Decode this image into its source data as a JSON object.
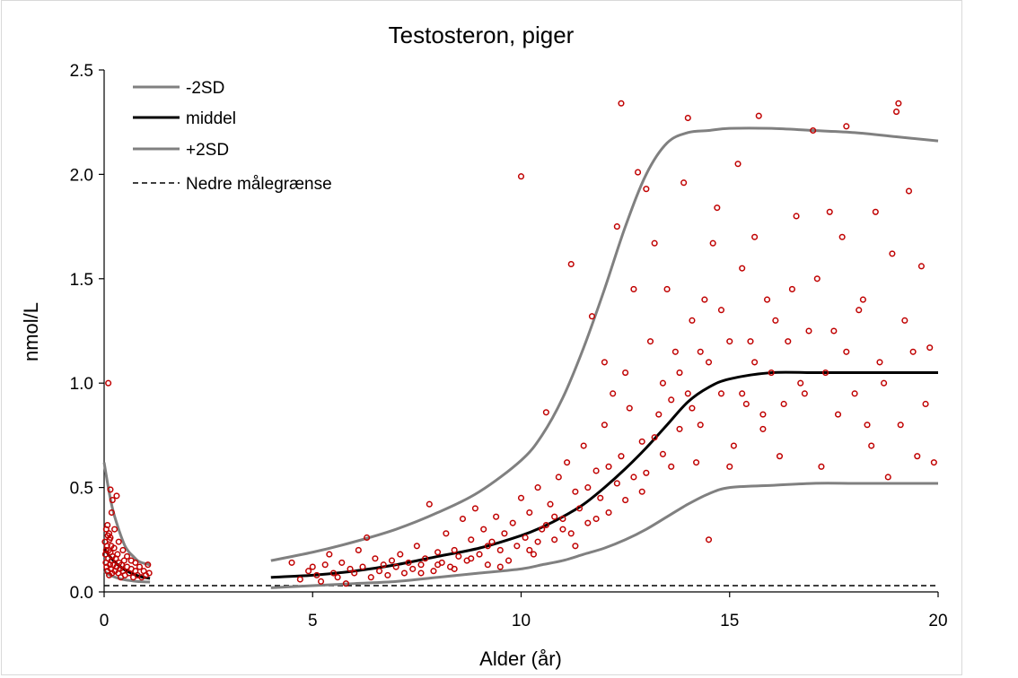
{
  "chart_data": {
    "type": "scatter",
    "title": "Testosteron, piger",
    "xlabel": "Alder (år)",
    "ylabel": "nmol/L",
    "xlim": [
      0,
      20
    ],
    "ylim": [
      0,
      2.5
    ],
    "x_ticks": [
      0,
      5,
      10,
      15,
      20
    ],
    "x_tick_labels": [
      "0",
      "5",
      "10",
      "15",
      "20"
    ],
    "y_ticks": [
      0,
      0.5,
      1.0,
      1.5,
      2.0,
      2.5
    ],
    "y_tick_labels": [
      "0.0",
      "0.5",
      "1.0",
      "1.5",
      "2.0",
      "2.5"
    ],
    "legend_position": "top-left",
    "legend": [
      {
        "label": "-2SD",
        "style": "gray"
      },
      {
        "label": "middel",
        "style": "black"
      },
      {
        "label": "+2SD",
        "style": "gray"
      },
      {
        "label": "Nedre målegrænse",
        "style": "dashed"
      }
    ],
    "lower_detection_limit": 0.03,
    "series": [
      {
        "name": "+2SD",
        "color": "#808080",
        "infant": {
          "x": [
            0,
            0.1,
            0.2,
            0.3,
            0.4,
            0.5,
            0.6,
            0.7,
            0.8,
            0.9,
            1.0,
            1.1
          ],
          "y": [
            0.62,
            0.5,
            0.4,
            0.33,
            0.27,
            0.22,
            0.19,
            0.17,
            0.15,
            0.14,
            0.135,
            0.13
          ]
        },
        "child": {
          "x": [
            4,
            5,
            6,
            7,
            8,
            9,
            10,
            10.5,
            11,
            11.5,
            12,
            12.5,
            13,
            13.5,
            14,
            14.5,
            15,
            16,
            17,
            18,
            19,
            20
          ],
          "y": [
            0.15,
            0.19,
            0.24,
            0.3,
            0.38,
            0.48,
            0.63,
            0.75,
            0.93,
            1.17,
            1.45,
            1.75,
            2.0,
            2.15,
            2.2,
            2.21,
            2.22,
            2.22,
            2.21,
            2.2,
            2.18,
            2.16
          ]
        }
      },
      {
        "name": "middel",
        "color": "#000000",
        "infant": {
          "x": [
            0,
            0.1,
            0.2,
            0.3,
            0.4,
            0.5,
            0.6,
            0.7,
            0.8,
            0.9,
            1.0,
            1.1
          ],
          "y": [
            0.21,
            0.18,
            0.155,
            0.135,
            0.12,
            0.105,
            0.095,
            0.085,
            0.078,
            0.072,
            0.068,
            0.065
          ]
        },
        "child": {
          "x": [
            4,
            5,
            6,
            7,
            8,
            9,
            10,
            10.5,
            11,
            11.5,
            12,
            12.5,
            13,
            13.5,
            14,
            14.5,
            15,
            16,
            17,
            18,
            19,
            20
          ],
          "y": [
            0.07,
            0.08,
            0.1,
            0.13,
            0.17,
            0.21,
            0.27,
            0.31,
            0.36,
            0.42,
            0.5,
            0.59,
            0.69,
            0.8,
            0.91,
            0.98,
            1.02,
            1.05,
            1.05,
            1.05,
            1.05,
            1.05
          ]
        }
      },
      {
        "name": "-2SD",
        "color": "#808080",
        "infant": {
          "x": [
            0,
            0.1,
            0.2,
            0.3,
            0.4,
            0.5,
            0.6,
            0.7,
            0.8,
            0.9,
            1.0,
            1.1
          ],
          "y": [
            0.1,
            0.085,
            0.075,
            0.068,
            0.062,
            0.058,
            0.055,
            0.052,
            0.05,
            0.049,
            0.048,
            0.047
          ]
        },
        "child": {
          "x": [
            4,
            5,
            6,
            7,
            8,
            9,
            10,
            10.5,
            11,
            11.5,
            12,
            12.5,
            13,
            13.5,
            14,
            14.5,
            15,
            16,
            17,
            18,
            19,
            20
          ],
          "y": [
            0.02,
            0.03,
            0.04,
            0.05,
            0.07,
            0.09,
            0.11,
            0.13,
            0.15,
            0.18,
            0.21,
            0.25,
            0.3,
            0.36,
            0.42,
            0.47,
            0.5,
            0.51,
            0.52,
            0.52,
            0.52,
            0.52
          ]
        }
      }
    ],
    "points": [
      [
        0.02,
        0.24
      ],
      [
        0.03,
        0.18
      ],
      [
        0.04,
        0.14
      ],
      [
        0.05,
        0.3
      ],
      [
        0.06,
        0.12
      ],
      [
        0.07,
        0.22
      ],
      [
        0.08,
        0.1
      ],
      [
        0.09,
        0.27
      ],
      [
        0.1,
        0.16
      ],
      [
        0.11,
        0.2
      ],
      [
        0.12,
        0.08
      ],
      [
        0.13,
        0.25
      ],
      [
        0.14,
        0.13
      ],
      [
        0.15,
        0.19
      ],
      [
        0.16,
        0.11
      ],
      [
        0.17,
        0.22
      ],
      [
        0.18,
        0.15
      ],
      [
        0.19,
        0.09
      ],
      [
        0.2,
        0.17
      ],
      [
        0.22,
        0.13
      ],
      [
        0.24,
        0.21
      ],
      [
        0.26,
        0.1
      ],
      [
        0.28,
        0.16
      ],
      [
        0.3,
        0.12
      ],
      [
        0.32,
        0.18
      ],
      [
        0.34,
        0.09
      ],
      [
        0.36,
        0.14
      ],
      [
        0.38,
        0.11
      ],
      [
        0.4,
        0.07
      ],
      [
        0.42,
        0.13
      ],
      [
        0.45,
        0.1
      ],
      [
        0.48,
        0.15
      ],
      [
        0.5,
        0.08
      ],
      [
        0.55,
        0.12
      ],
      [
        0.6,
        0.09
      ],
      [
        0.65,
        0.11
      ],
      [
        0.7,
        0.07
      ],
      [
        0.75,
        0.1
      ],
      [
        0.8,
        0.08
      ],
      [
        0.85,
        0.12
      ],
      [
        0.9,
        0.07
      ],
      [
        0.95,
        0.1
      ],
      [
        1.0,
        0.08
      ],
      [
        1.05,
        0.13
      ],
      [
        1.08,
        0.09
      ],
      [
        0.05,
        0.2
      ],
      [
        0.08,
        0.32
      ],
      [
        0.12,
        0.28
      ],
      [
        0.15,
        0.26
      ],
      [
        0.25,
        0.3
      ],
      [
        0.18,
        0.38
      ],
      [
        0.2,
        0.44
      ],
      [
        0.1,
        1.0
      ],
      [
        0.3,
        0.46
      ],
      [
        0.15,
        0.49
      ],
      [
        0.35,
        0.24
      ],
      [
        0.45,
        0.2
      ],
      [
        0.55,
        0.17
      ],
      [
        0.65,
        0.15
      ],
      [
        0.75,
        0.14
      ],
      [
        4.5,
        0.14
      ],
      [
        4.7,
        0.06
      ],
      [
        4.9,
        0.1
      ],
      [
        5.0,
        0.12
      ],
      [
        5.1,
        0.08
      ],
      [
        5.2,
        0.05
      ],
      [
        5.3,
        0.13
      ],
      [
        5.4,
        0.18
      ],
      [
        5.5,
        0.09
      ],
      [
        5.6,
        0.07
      ],
      [
        5.7,
        0.14
      ],
      [
        5.8,
        0.04
      ],
      [
        5.9,
        0.11
      ],
      [
        6.0,
        0.09
      ],
      [
        6.1,
        0.2
      ],
      [
        6.2,
        0.12
      ],
      [
        6.3,
        0.26
      ],
      [
        6.4,
        0.07
      ],
      [
        6.5,
        0.16
      ],
      [
        6.6,
        0.1
      ],
      [
        6.7,
        0.13
      ],
      [
        6.8,
        0.08
      ],
      [
        6.9,
        0.15
      ],
      [
        7.0,
        0.12
      ],
      [
        7.1,
        0.18
      ],
      [
        7.2,
        0.09
      ],
      [
        7.3,
        0.14
      ],
      [
        7.4,
        0.11
      ],
      [
        7.5,
        0.22
      ],
      [
        7.6,
        0.13
      ],
      [
        7.7,
        0.16
      ],
      [
        7.8,
        0.42
      ],
      [
        7.9,
        0.1
      ],
      [
        8.0,
        0.19
      ],
      [
        8.1,
        0.14
      ],
      [
        8.2,
        0.28
      ],
      [
        8.3,
        0.12
      ],
      [
        8.4,
        0.2
      ],
      [
        8.5,
        0.17
      ],
      [
        8.6,
        0.35
      ],
      [
        8.7,
        0.15
      ],
      [
        8.8,
        0.25
      ],
      [
        8.9,
        0.4
      ],
      [
        9.0,
        0.18
      ],
      [
        9.1,
        0.3
      ],
      [
        9.2,
        0.13
      ],
      [
        9.3,
        0.24
      ],
      [
        9.4,
        0.36
      ],
      [
        9.5,
        0.2
      ],
      [
        9.6,
        0.28
      ],
      [
        9.7,
        0.15
      ],
      [
        9.8,
        0.33
      ],
      [
        9.9,
        0.22
      ],
      [
        10.0,
        1.99
      ],
      [
        10.0,
        0.45
      ],
      [
        10.1,
        0.26
      ],
      [
        10.2,
        0.38
      ],
      [
        10.3,
        0.18
      ],
      [
        10.4,
        0.5
      ],
      [
        10.5,
        0.3
      ],
      [
        10.6,
        0.86
      ],
      [
        10.7,
        0.42
      ],
      [
        10.8,
        0.25
      ],
      [
        10.9,
        0.55
      ],
      [
        11.0,
        0.35
      ],
      [
        11.1,
        0.62
      ],
      [
        11.2,
        1.57
      ],
      [
        11.2,
        0.28
      ],
      [
        11.3,
        0.48
      ],
      [
        11.4,
        0.4
      ],
      [
        11.5,
        0.7
      ],
      [
        11.6,
        0.33
      ],
      [
        11.7,
        1.32
      ],
      [
        11.8,
        0.58
      ],
      [
        11.9,
        0.45
      ],
      [
        12.0,
        1.1
      ],
      [
        12.0,
        0.8
      ],
      [
        12.1,
        0.38
      ],
      [
        12.2,
        0.95
      ],
      [
        12.3,
        1.75
      ],
      [
        12.3,
        0.52
      ],
      [
        12.4,
        0.65
      ],
      [
        12.4,
        2.34
      ],
      [
        12.5,
        1.05
      ],
      [
        12.6,
        0.88
      ],
      [
        12.7,
        1.45
      ],
      [
        12.8,
        2.01
      ],
      [
        12.9,
        0.72
      ],
      [
        13.0,
        1.93
      ],
      [
        13.0,
        0.57
      ],
      [
        13.1,
        1.2
      ],
      [
        13.2,
        1.67
      ],
      [
        13.3,
        0.85
      ],
      [
        13.4,
        1.0
      ],
      [
        13.5,
        1.45
      ],
      [
        13.6,
        0.6
      ],
      [
        13.7,
        1.15
      ],
      [
        13.8,
        0.78
      ],
      [
        13.9,
        1.96
      ],
      [
        14.0,
        2.27
      ],
      [
        14.0,
        0.95
      ],
      [
        14.1,
        1.3
      ],
      [
        14.2,
        0.62
      ],
      [
        14.3,
        0.8
      ],
      [
        14.4,
        1.4
      ],
      [
        14.5,
        1.1
      ],
      [
        14.5,
        0.25
      ],
      [
        14.6,
        1.67
      ],
      [
        14.7,
        1.84
      ],
      [
        14.8,
        0.95
      ],
      [
        15.0,
        1.2
      ],
      [
        15.1,
        0.7
      ],
      [
        15.2,
        2.05
      ],
      [
        15.3,
        1.55
      ],
      [
        15.4,
        0.9
      ],
      [
        15.5,
        1.2
      ],
      [
        15.6,
        1.7
      ],
      [
        15.7,
        2.28
      ],
      [
        15.8,
        0.78
      ],
      [
        15.9,
        1.4
      ],
      [
        16.0,
        1.05
      ],
      [
        16.2,
        0.65
      ],
      [
        16.4,
        1.2
      ],
      [
        16.6,
        1.8
      ],
      [
        16.8,
        0.95
      ],
      [
        17.0,
        2.21
      ],
      [
        17.1,
        1.5
      ],
      [
        17.2,
        0.6
      ],
      [
        17.4,
        1.82
      ],
      [
        17.5,
        1.25
      ],
      [
        17.6,
        0.85
      ],
      [
        17.7,
        1.7
      ],
      [
        17.8,
        2.23
      ],
      [
        18.0,
        0.95
      ],
      [
        18.2,
        1.4
      ],
      [
        18.4,
        0.7
      ],
      [
        18.5,
        1.82
      ],
      [
        18.6,
        1.1
      ],
      [
        18.8,
        0.55
      ],
      [
        18.9,
        1.62
      ],
      [
        19.0,
        2.3
      ],
      [
        19.05,
        2.34
      ],
      [
        19.1,
        0.8
      ],
      [
        19.3,
        1.92
      ],
      [
        19.4,
        1.15
      ],
      [
        19.5,
        0.65
      ],
      [
        19.6,
        1.56
      ],
      [
        19.7,
        0.9
      ],
      [
        19.8,
        1.17
      ],
      [
        19.9,
        0.62
      ],
      [
        11.0,
        0.3
      ],
      [
        11.3,
        0.22
      ],
      [
        11.6,
        0.5
      ],
      [
        11.8,
        0.35
      ],
      [
        12.1,
        0.6
      ],
      [
        12.5,
        0.44
      ],
      [
        12.7,
        0.55
      ],
      [
        12.9,
        0.48
      ],
      [
        13.2,
        0.74
      ],
      [
        13.4,
        0.66
      ],
      [
        13.6,
        0.92
      ],
      [
        13.8,
        1.05
      ],
      [
        14.1,
        0.88
      ],
      [
        14.3,
        1.15
      ],
      [
        14.8,
        1.35
      ],
      [
        15.0,
        0.6
      ],
      [
        15.3,
        0.95
      ],
      [
        15.6,
        1.1
      ],
      [
        15.8,
        0.85
      ],
      [
        16.1,
        1.3
      ],
      [
        16.3,
        0.9
      ],
      [
        16.5,
        1.45
      ],
      [
        16.7,
        1.0
      ],
      [
        16.9,
        1.25
      ],
      [
        17.3,
        1.05
      ],
      [
        17.8,
        1.15
      ],
      [
        18.1,
        1.35
      ],
      [
        18.3,
        0.8
      ],
      [
        18.7,
        1.0
      ],
      [
        19.2,
        1.3
      ],
      [
        10.2,
        0.2
      ],
      [
        10.4,
        0.24
      ],
      [
        10.6,
        0.32
      ],
      [
        10.8,
        0.36
      ],
      [
        9.5,
        0.12
      ],
      [
        9.2,
        0.22
      ],
      [
        8.8,
        0.16
      ],
      [
        8.4,
        0.11
      ],
      [
        8.0,
        0.13
      ],
      [
        7.6,
        0.09
      ]
    ]
  }
}
